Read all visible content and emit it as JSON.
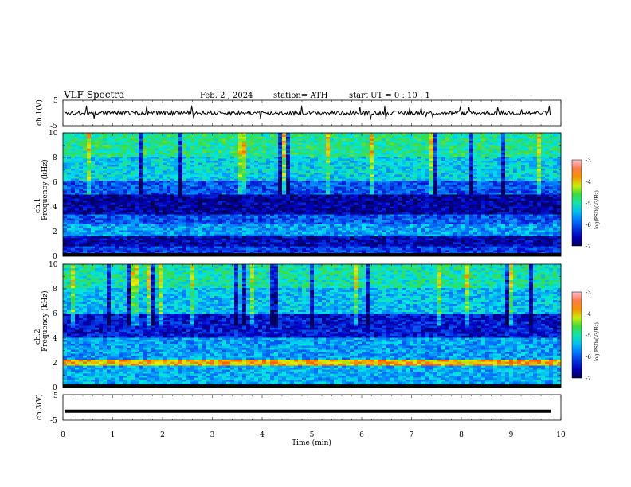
{
  "header": {
    "title": "VLF  Spectra",
    "date": "Feb. 2  , 2024",
    "station": "station= ATH",
    "start_ut": "start  UT  =    0  : 10 : 1"
  },
  "chart_data": [
    {
      "id": "ch1-waveform",
      "type": "line",
      "ylabel": "ch.1(V)",
      "ylim": [
        -5,
        5
      ],
      "yticks": [
        "5",
        "-5"
      ],
      "xlim": [
        0,
        10
      ],
      "duration_min": 9.8,
      "baseline": 0
    },
    {
      "id": "ch1-spectrogram",
      "type": "heatmap",
      "ylabel": "ch.1\nFrequency  (kHz)",
      "ylabel_lines": [
        "ch.1",
        "Frequency  (kHz)"
      ],
      "ylim": [
        0,
        10
      ],
      "yticks": [
        "0",
        "2",
        "4",
        "6",
        "8",
        "10"
      ],
      "xlim": [
        0,
        10
      ],
      "colorbar": {
        "label": "log(PSD)(V²/Hz)",
        "ticks": [
          "-3",
          "-4",
          "-5",
          "-6",
          "-7"
        ],
        "range": [
          -7,
          -3
        ]
      },
      "bands": [
        {
          "from": 0.0,
          "to": 0.8,
          "level": -6.2
        },
        {
          "from": 0.8,
          "to": 1.6,
          "level": -6.6
        },
        {
          "from": 1.6,
          "to": 2.6,
          "level": -5.6
        },
        {
          "from": 2.6,
          "to": 3.4,
          "level": -6.0
        },
        {
          "from": 3.4,
          "to": 5.0,
          "level": -6.7
        },
        {
          "from": 5.0,
          "to": 6.2,
          "level": -6.0
        },
        {
          "from": 6.2,
          "to": 8.0,
          "level": -5.3
        },
        {
          "from": 8.0,
          "to": 10.0,
          "level": -4.9
        }
      ]
    },
    {
      "id": "ch2-spectrogram",
      "type": "heatmap",
      "ylabel": "ch.2\nFrequency  (kHz)",
      "ylabel_lines": [
        "ch.2",
        "Frequency  (kHz)"
      ],
      "ylim": [
        0,
        10
      ],
      "yticks": [
        "0",
        "2",
        "4",
        "6",
        "8",
        "10"
      ],
      "xlim": [
        0,
        10
      ],
      "colorbar": {
        "label": "log(PSD)(V²/Hz)",
        "ticks": [
          "-3",
          "-4",
          "-5",
          "-6",
          "-7"
        ],
        "range": [
          -7,
          -3
        ]
      },
      "bands": [
        {
          "from": 0.0,
          "to": 1.8,
          "level": -5.5
        },
        {
          "from": 1.8,
          "to": 2.2,
          "level": -3.9
        },
        {
          "from": 2.2,
          "to": 4.0,
          "level": -5.6
        },
        {
          "from": 4.0,
          "to": 6.0,
          "level": -6.4
        },
        {
          "from": 6.0,
          "to": 8.0,
          "level": -5.4
        },
        {
          "from": 8.0,
          "to": 10.0,
          "level": -5.0
        }
      ]
    },
    {
      "id": "ch3-waveform",
      "type": "line",
      "ylabel": "ch.3(V)",
      "ylim": [
        -5,
        5
      ],
      "yticks": [
        "5",
        "-5"
      ],
      "xlim": [
        0,
        10
      ],
      "duration_min": 9.8,
      "baseline": -1.5,
      "xlabel": "Time  (min)",
      "xticks": [
        "0",
        "1",
        "2",
        "3",
        "4",
        "5",
        "6",
        "7",
        "8",
        "9",
        "10"
      ]
    }
  ]
}
